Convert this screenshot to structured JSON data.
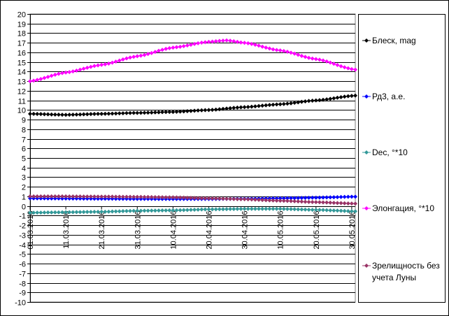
{
  "chart_data": {
    "type": "line",
    "title": "",
    "xlabel": "",
    "ylabel": "",
    "ylim": [
      -10,
      20
    ],
    "y_ticks": [
      "20",
      "19",
      "18",
      "17",
      "16",
      "15",
      "14",
      "13",
      "12",
      "11",
      "10",
      "9",
      "8",
      "7",
      "6",
      "5",
      "4",
      "3",
      "2",
      "1",
      "0",
      "-1",
      "-2",
      "-3",
      "-4",
      "-5",
      "-6",
      "-7",
      "-8",
      "-9",
      "-10"
    ],
    "x_start": "01.03.2016",
    "x_end": "31.05.2016",
    "x_tick_labels": [
      "01.03.2016",
      "11.03.2016",
      "21.03.2016",
      "31.03.2016",
      "10.04.2016",
      "20.04.2016",
      "30.04.2016",
      "10.05.2016",
      "20.05.2016",
      "30.05.2016"
    ],
    "grid": "horizontal",
    "legend_position": "right",
    "series": [
      {
        "name": "Блеск, mag",
        "color": "#000000",
        "points": [
          [
            "01.03.2016",
            9.6
          ],
          [
            "11.03.2016",
            9.5
          ],
          [
            "21.03.2016",
            9.6
          ],
          [
            "31.03.2016",
            9.7
          ],
          [
            "10.04.2016",
            9.8
          ],
          [
            "20.04.2016",
            10.0
          ],
          [
            "30.04.2016",
            10.3
          ],
          [
            "10.05.2016",
            10.6
          ],
          [
            "20.05.2016",
            11.0
          ],
          [
            "31.05.2016",
            11.5
          ]
        ]
      },
      {
        "name": "Рд3, а.е.",
        "color": "#0000ff",
        "points": [
          [
            "01.03.2016",
            0.8
          ],
          [
            "11.03.2016",
            0.78
          ],
          [
            "21.03.2016",
            0.76
          ],
          [
            "31.03.2016",
            0.74
          ],
          [
            "10.04.2016",
            0.73
          ],
          [
            "20.04.2016",
            0.73
          ],
          [
            "30.04.2016",
            0.75
          ],
          [
            "10.05.2016",
            0.8
          ],
          [
            "20.05.2016",
            0.87
          ],
          [
            "31.05.2016",
            0.97
          ]
        ]
      },
      {
        "name": "Dec, °*10",
        "color": "#339999",
        "points": [
          [
            "01.03.2016",
            -0.7
          ],
          [
            "11.03.2016",
            -0.65
          ],
          [
            "21.03.2016",
            -0.6
          ],
          [
            "31.03.2016",
            -0.5
          ],
          [
            "10.04.2016",
            -0.45
          ],
          [
            "20.04.2016",
            -0.35
          ],
          [
            "30.04.2016",
            -0.3
          ],
          [
            "10.05.2016",
            -0.3
          ],
          [
            "20.05.2016",
            -0.4
          ],
          [
            "31.05.2016",
            -0.55
          ]
        ]
      },
      {
        "name": "Элонгация, °*10",
        "color": "#ff00ff",
        "points": [
          [
            "01.03.2016",
            13.0
          ],
          [
            "11.03.2016",
            13.9
          ],
          [
            "21.03.2016",
            14.7
          ],
          [
            "31.03.2016",
            15.6
          ],
          [
            "10.04.2016",
            16.5
          ],
          [
            "20.04.2016",
            17.1
          ],
          [
            "25.04.2016",
            17.25
          ],
          [
            "30.04.2016",
            17.0
          ],
          [
            "10.05.2016",
            16.2
          ],
          [
            "20.05.2016",
            15.3
          ],
          [
            "31.05.2016",
            14.2
          ]
        ]
      },
      {
        "name": "Зрелищность без учета Луны",
        "color": "#993366",
        "points": [
          [
            "01.03.2016",
            1.0
          ],
          [
            "11.03.2016",
            1.0
          ],
          [
            "21.03.2016",
            0.98
          ],
          [
            "31.03.2016",
            0.95
          ],
          [
            "10.04.2016",
            0.9
          ],
          [
            "20.04.2016",
            0.8
          ],
          [
            "30.04.2016",
            0.7
          ],
          [
            "10.05.2016",
            0.55
          ],
          [
            "20.05.2016",
            0.4
          ],
          [
            "31.05.2016",
            0.25
          ]
        ]
      }
    ]
  }
}
